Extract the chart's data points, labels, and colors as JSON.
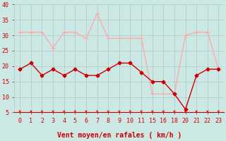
{
  "xlabel": "Vent moyen/en rafales ( km/h )",
  "background_color": "#cce8e4",
  "grid_color": "#b0c8c4",
  "ylim": [
    5,
    40
  ],
  "y_ticks": [
    5,
    10,
    15,
    20,
    25,
    30,
    35,
    40
  ],
  "x_tick_labels": [
    "0",
    "1",
    "2",
    "3",
    "4",
    "5",
    "6",
    "7",
    "8",
    "9",
    "1011",
    "1516",
    "18",
    "2021",
    "2223"
  ],
  "x_tick_positions": [
    0,
    1,
    2,
    3,
    4,
    5,
    6,
    7,
    8,
    9,
    10,
    12,
    13,
    14,
    16
  ],
  "num_points": 19,
  "mean_wind_y": [
    19,
    21,
    17,
    19,
    17,
    19,
    17,
    17,
    19,
    21,
    21,
    18,
    15,
    15,
    11,
    6,
    17,
    19,
    19
  ],
  "gust_wind_y": [
    31,
    31,
    31,
    26,
    31,
    31,
    29,
    37,
    29,
    29,
    29,
    29,
    11,
    11,
    11,
    30,
    31,
    31,
    19
  ],
  "mean_color": "#cc0000",
  "gust_color": "#ffaaaa",
  "linewidth": 1.0,
  "marker_mean": "D",
  "marker_gust": "+",
  "markersize_mean": 2.5,
  "markersize_gust": 4,
  "tick_color": "#cc0000",
  "tick_fontsize": 6,
  "xlabel_fontsize": 7,
  "arrow_down_indices": [
    0,
    1,
    2,
    3,
    4,
    5,
    6,
    7,
    8,
    9,
    10,
    11,
    12,
    13,
    14,
    15,
    16,
    17,
    18
  ]
}
